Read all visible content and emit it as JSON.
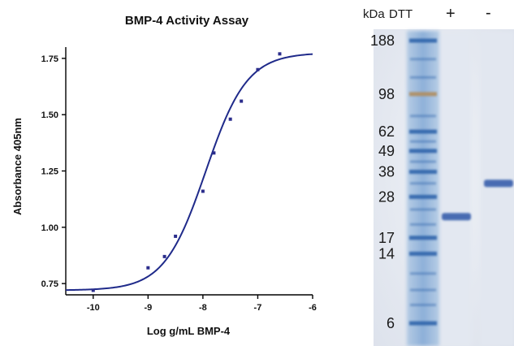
{
  "chart_data": {
    "type": "scatter",
    "title": "BMP-4 Activity Assay",
    "xlabel": "Log g/mL BMP-4",
    "ylabel": "Absorbance 405nm",
    "xlim": [
      -10.5,
      -6
    ],
    "ylim": [
      0.7,
      1.8
    ],
    "x_ticks": [
      -10,
      -9,
      -8,
      -7,
      -6
    ],
    "x_tick_labels": [
      "-10",
      "-9",
      "-8",
      "-7",
      "-6"
    ],
    "y_ticks": [
      0.75,
      1.0,
      1.25,
      1.5,
      1.75
    ],
    "y_tick_labels": [
      "0.75",
      "1.00",
      "1.25",
      "1.50",
      "1.75"
    ],
    "grid": false,
    "colors": {
      "points": "#2b2d8c",
      "fit_line": "#1f2a8a",
      "axes": "#000000"
    },
    "series": [
      {
        "points": [
          {
            "x": -10.0,
            "y": 0.72
          },
          {
            "x": -9.0,
            "y": 0.82
          },
          {
            "x": -8.7,
            "y": 0.87
          },
          {
            "x": -8.5,
            "y": 0.96
          },
          {
            "x": -8.0,
            "y": 1.16
          },
          {
            "x": -7.8,
            "y": 1.33
          },
          {
            "x": -7.5,
            "y": 1.48
          },
          {
            "x": -7.3,
            "y": 1.56
          },
          {
            "x": -7.0,
            "y": 1.7
          },
          {
            "x": -6.6,
            "y": 1.77
          }
        ]
      }
    ],
    "fit": {
      "model": "4PL sigmoid",
      "bottom": 0.72,
      "top": 1.775,
      "log_ec50": -7.95,
      "hill_slope": 1.15
    }
  },
  "gel": {
    "header": {
      "kda_label": "kDa",
      "dtt_label": "DTT",
      "plus_label": "+",
      "minus_label": "-"
    },
    "markers_kda": [
      {
        "label": "188",
        "kda": 188
      },
      {
        "label": "98",
        "kda": 98
      },
      {
        "label": "62",
        "kda": 62
      },
      {
        "label": "49",
        "kda": 49
      },
      {
        "label": "38",
        "kda": 38
      },
      {
        "label": "28",
        "kda": 28
      },
      {
        "label": "17",
        "kda": 17
      },
      {
        "label": "14",
        "kda": 14
      },
      {
        "label": "6",
        "kda": 6
      }
    ],
    "lanes": [
      {
        "condition": "+",
        "band_kda": 22
      },
      {
        "condition": "-",
        "band_kda": 33
      }
    ],
    "colors": {
      "background": "#e7ebf2",
      "marker_lane": "#7aa3d0",
      "marker_band": "#2f63aa",
      "marker_98": "#b08d5e",
      "sample_band": "#2d56a8"
    }
  }
}
